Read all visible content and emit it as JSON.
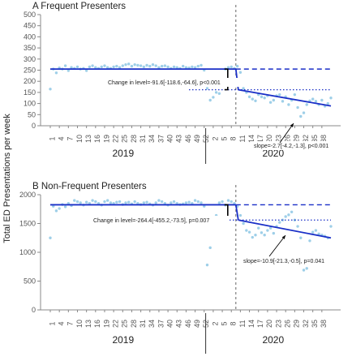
{
  "y_axis_label": "Total ED Presentations per week",
  "chart_data": [
    {
      "type": "scatter",
      "panel": "A",
      "title": "A  Frequent Presenters",
      "ylim": [
        0,
        500
      ],
      "yticks": [
        0,
        50,
        100,
        150,
        200,
        250,
        300,
        350,
        400,
        450,
        500
      ],
      "x_tick_labels": [
        "1",
        "4",
        "7",
        "10",
        "13",
        "16",
        "19",
        "22",
        "25",
        "28",
        "31",
        "34",
        "37",
        "40",
        "43",
        "46",
        "49",
        "52",
        "2",
        "5",
        "8",
        "11",
        "14",
        "17",
        "20",
        "23",
        "26",
        "29",
        "32",
        "35",
        "38"
      ],
      "years": [
        "2019",
        "2020"
      ],
      "intervention_week_index": 62,
      "values": [
        165,
        255,
        238,
        260,
        255,
        270,
        248,
        262,
        258,
        265,
        255,
        258,
        248,
        265,
        270,
        262,
        258,
        265,
        270,
        262,
        258,
        265,
        268,
        262,
        270,
        275,
        278,
        268,
        275,
        272,
        270,
        265,
        272,
        268,
        275,
        270,
        262,
        268,
        270,
        265,
        258,
        265,
        262,
        258,
        268,
        262,
        260,
        265,
        262,
        268,
        272,
        250,
        168,
        115,
        128,
        150,
        145,
        200,
        255,
        262,
        265,
        258,
        268,
        240,
        168,
        150,
        130,
        120,
        112,
        140,
        130,
        125,
        135,
        105,
        115,
        135,
        140,
        110,
        130,
        95,
        115,
        140,
        82,
        42,
        58,
        95,
        112,
        120,
        110,
        95,
        115,
        88,
        100,
        125
      ],
      "fitted_pre": [
        255,
        255
      ],
      "fitted_post": [
        162,
        89
      ],
      "counterfactual_level": 255,
      "counterfactual_dotted_level": 162,
      "annotations": {
        "change_in_level": "Change in level=-91.6[-118.6,-64.6], p<0.001",
        "slope": "slope=-2.7[-4.2,-1.3], p<0.001"
      }
    },
    {
      "type": "scatter",
      "panel": "B",
      "title": "B  Non-Frequent Presenters",
      "ylim": [
        0,
        2000
      ],
      "yticks": [
        0,
        500,
        1000,
        1500,
        2000
      ],
      "x_tick_labels": [
        "1",
        "4",
        "7",
        "10",
        "13",
        "16",
        "19",
        "22",
        "25",
        "28",
        "31",
        "34",
        "37",
        "40",
        "43",
        "46",
        "49",
        "52",
        "2",
        "5",
        "8",
        "11",
        "14",
        "17",
        "20",
        "23",
        "26",
        "29",
        "32",
        "35",
        "38"
      ],
      "years": [
        "2019",
        "2020"
      ],
      "intervention_week_index": 62,
      "values": [
        1250,
        1800,
        1720,
        1760,
        1830,
        1790,
        1850,
        1810,
        1900,
        1880,
        1860,
        1820,
        1870,
        1850,
        1900,
        1880,
        1850,
        1820,
        1880,
        1900,
        1860,
        1850,
        1870,
        1880,
        1830,
        1860,
        1870,
        1840,
        1880,
        1850,
        1830,
        1860,
        1870,
        1840,
        1820,
        1860,
        1900,
        1880,
        1850,
        1820,
        1860,
        1880,
        1850,
        1830,
        1840,
        1860,
        1870,
        1850,
        1900,
        1880,
        1860,
        1800,
        780,
        1080,
        1560,
        1640,
        1860,
        1880,
        1820,
        1900,
        1880,
        1850,
        1800,
        1640,
        1500,
        1380,
        1350,
        1260,
        1300,
        1420,
        1340,
        1300,
        1380,
        1420,
        1330,
        1450,
        1520,
        1560,
        1620,
        1650,
        1700,
        1560,
        1450,
        1250,
        690,
        720,
        1200,
        1350,
        1380,
        1320,
        1300,
        1280,
        1250,
        1450
      ],
      "fitted_pre": [
        1825,
        1825
      ],
      "fitted_post": [
        1560,
        1250
      ],
      "counterfactual_level": 1825,
      "counterfactual_dotted_level": 1560,
      "annotations": {
        "change_in_level": "Change in level=-264.4[-455.2,-73.5], p=0.007",
        "slope": "slope=-10.9[-21.3,-0.5], p=0.041"
      }
    }
  ]
}
